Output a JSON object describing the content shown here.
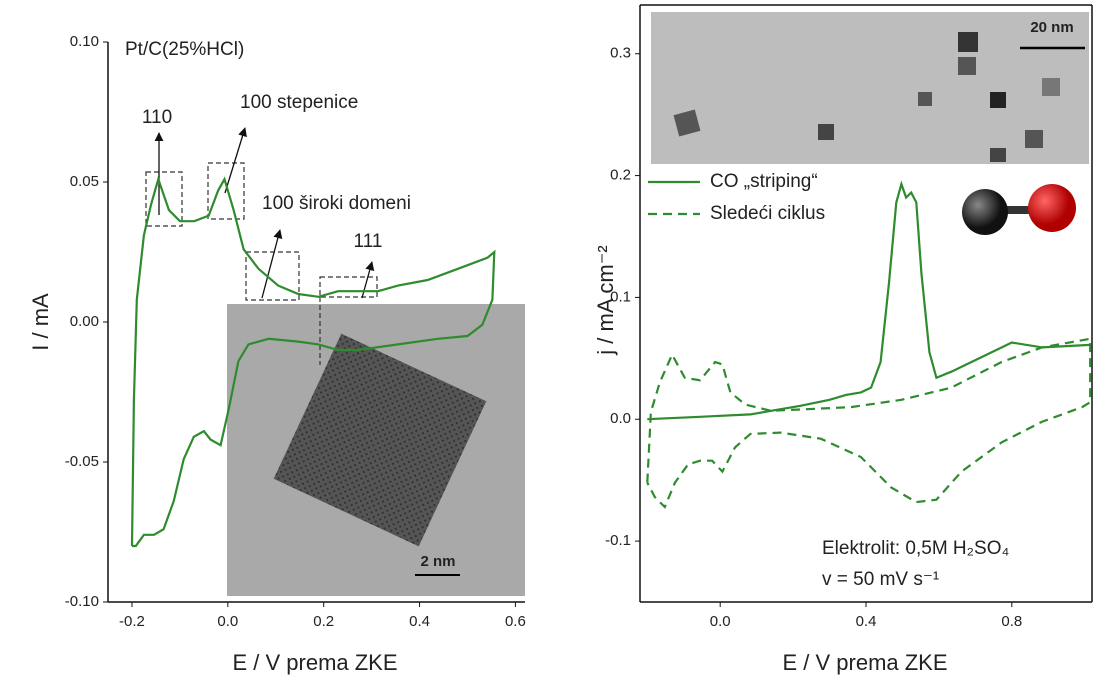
{
  "chart_data": [
    {
      "type": "line",
      "x_label": "E / V prema ZKE",
      "y_label": "I / mA",
      "annotations": [
        "Pt/C(25%HCl)",
        "110",
        "100 stepenice",
        "100 široki domeni",
        "111",
        "2 nm"
      ],
      "xlim": [
        -0.25,
        0.62
      ],
      "ylim": [
        -0.1,
        0.1
      ],
      "xticks": [
        -0.2,
        {
          "value": 0,
          "label": "0.0"
        },
        0.2,
        0.4,
        0.6
      ],
      "yticks": [
        {
          "value": -0.1,
          "label": "-0.10"
        },
        -0.05,
        {
          "value": 0,
          "label": "0.00"
        },
        0.05,
        {
          "value": 0.1,
          "label": "0.10"
        }
      ],
      "series": [
        {
          "color": "#2e8b2e",
          "line_style": "solid",
          "x": [
            -0.2,
            -0.196,
            -0.19,
            -0.175,
            -0.16,
            -0.145,
            -0.123,
            -0.1,
            -0.07,
            -0.04,
            -0.02,
            -0.007,
            0.012,
            0.033,
            0.064,
            0.105,
            0.147,
            0.189,
            0.23,
            0.272,
            0.313,
            0.355,
            0.417,
            0.48,
            0.542,
            0.556,
            0.552,
            0.531,
            0.5,
            0.438,
            0.355,
            0.272,
            0.23,
            0.189,
            0.147,
            0.085,
            0.043,
            0.022,
            0.002,
            -0.015,
            -0.036,
            -0.05,
            -0.071,
            -0.092,
            -0.113,
            -0.134,
            -0.154,
            -0.175,
            -0.192,
            -0.2
          ],
          "values": [
            -0.08,
            -0.028,
            0.008,
            0.031,
            0.042,
            0.051,
            0.04,
            0.036,
            0.036,
            0.038,
            0.047,
            0.051,
            0.04,
            0.026,
            0.019,
            0.013,
            0.01,
            0.009,
            0.011,
            0.011,
            0.011,
            0.013,
            0.015,
            0.019,
            0.023,
            0.025,
            0.008,
            -0.001,
            -0.005,
            -0.006,
            -0.008,
            -0.01,
            -0.01,
            -0.008,
            -0.007,
            -0.006,
            -0.008,
            -0.014,
            -0.031,
            -0.044,
            -0.042,
            -0.039,
            -0.041,
            -0.049,
            -0.064,
            -0.074,
            -0.076,
            -0.076,
            -0.08,
            -0.08
          ]
        }
      ]
    },
    {
      "type": "line",
      "x_label": "E / V prema ZKE",
      "y_label": "j / mA cm⁻²",
      "annotations": [
        "20 nm",
        "Elektrolit: 0,5M H₂SO₄",
        "v = 50 mV s⁻¹"
      ],
      "xlim": [
        -0.22,
        1.02
      ],
      "ylim": [
        -0.15,
        0.34
      ],
      "xticks": [
        {
          "value": 0,
          "label": "0.0"
        },
        0.4,
        0.8
      ],
      "yticks": [
        -0.1,
        {
          "value": 0,
          "label": "0.0"
        },
        0.1,
        0.2,
        0.3
      ],
      "series": [
        {
          "name": "CO „striping“",
          "color": "#2e8b2e",
          "line_style": "solid",
          "x": [
            -0.2,
            -0.055,
            0.083,
            0.22,
            0.3,
            0.345,
            0.386,
            0.414,
            0.44,
            0.463,
            0.483,
            0.497,
            0.51,
            0.524,
            0.538,
            0.552,
            0.574,
            0.593,
            0.634,
            0.717,
            0.8,
            0.883,
            1.015
          ],
          "values": [
            0.0,
            0.002,
            0.004,
            0.011,
            0.016,
            0.02,
            0.022,
            0.026,
            0.047,
            0.112,
            0.178,
            0.193,
            0.182,
            0.186,
            0.178,
            0.12,
            0.055,
            0.034,
            0.039,
            0.051,
            0.063,
            0.059,
            0.061
          ]
        },
        {
          "name": "Sledeći ciklus",
          "color": "#2e8b2e",
          "line_style": "dashed",
          "x": [
            -0.2,
            -0.19,
            -0.166,
            -0.132,
            -0.097,
            -0.055,
            -0.014,
            0.006,
            0.028,
            0.069,
            0.138,
            0.22,
            0.359,
            0.497,
            0.634,
            0.772,
            0.883,
            1.015,
            1.015,
            0.993,
            0.883,
            0.772,
            0.662,
            0.593,
            0.538,
            0.469,
            0.386,
            0.276,
            0.166,
            0.083,
            0.041,
            0.006,
            -0.022,
            -0.055,
            -0.088,
            -0.124,
            -0.152,
            -0.179,
            -0.2
          ],
          "values": [
            -0.052,
            0.006,
            0.03,
            0.053,
            0.034,
            0.032,
            0.047,
            0.045,
            0.022,
            0.012,
            0.007,
            0.008,
            0.01,
            0.016,
            0.026,
            0.047,
            0.059,
            0.066,
            0.014,
            0.01,
            -0.002,
            -0.019,
            -0.043,
            -0.066,
            -0.068,
            -0.056,
            -0.031,
            -0.016,
            -0.011,
            -0.012,
            -0.023,
            -0.043,
            -0.034,
            -0.034,
            -0.037,
            -0.052,
            -0.072,
            -0.064,
            -0.052
          ]
        }
      ]
    }
  ]
}
